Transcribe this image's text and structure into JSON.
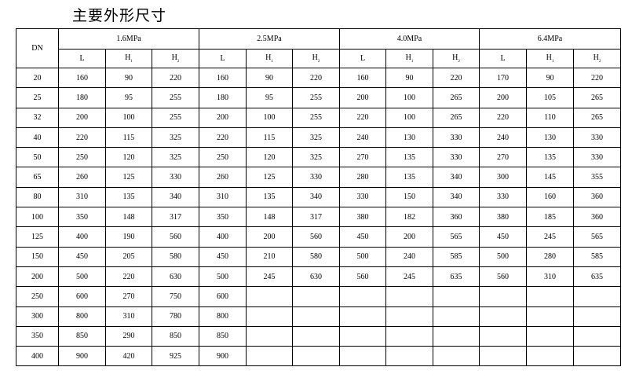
{
  "title": "主要外形尺寸",
  "table": {
    "dn_header": "DN",
    "pressure_groups": [
      "1.6MPa",
      "2.5MPa",
      "4.0MPa",
      "6.4MPa"
    ],
    "sub_headers": [
      {
        "base": "L",
        "sub": ""
      },
      {
        "base": "H",
        "sub": "1"
      },
      {
        "base": "H",
        "sub": "2"
      }
    ],
    "rows": [
      {
        "dn": "20",
        "values": [
          "160",
          "90",
          "220",
          "160",
          "90",
          "220",
          "160",
          "90",
          "220",
          "170",
          "90",
          "220"
        ]
      },
      {
        "dn": "25",
        "values": [
          "180",
          "95",
          "255",
          "180",
          "95",
          "255",
          "200",
          "100",
          "265",
          "200",
          "105",
          "265"
        ]
      },
      {
        "dn": "32",
        "values": [
          "200",
          "100",
          "255",
          "200",
          "100",
          "255",
          "220",
          "100",
          "265",
          "220",
          "110",
          "265"
        ]
      },
      {
        "dn": "40",
        "values": [
          "220",
          "115",
          "325",
          "220",
          "115",
          "325",
          "240",
          "130",
          "330",
          "240",
          "130",
          "330"
        ]
      },
      {
        "dn": "50",
        "values": [
          "250",
          "120",
          "325",
          "250",
          "120",
          "325",
          "270",
          "135",
          "330",
          "270",
          "135",
          "330"
        ]
      },
      {
        "dn": "65",
        "values": [
          "260",
          "125",
          "330",
          "260",
          "125",
          "330",
          "280",
          "135",
          "340",
          "300",
          "145",
          "355"
        ]
      },
      {
        "dn": "80",
        "values": [
          "310",
          "135",
          "340",
          "310",
          "135",
          "340",
          "330",
          "150",
          "340",
          "330",
          "160",
          "360"
        ]
      },
      {
        "dn": "100",
        "values": [
          "350",
          "148",
          "317",
          "350",
          "148",
          "317",
          "380",
          "182",
          "360",
          "380",
          "185",
          "360"
        ]
      },
      {
        "dn": "125",
        "values": [
          "400",
          "190",
          "560",
          "400",
          "200",
          "560",
          "450",
          "200",
          "565",
          "450",
          "245",
          "565"
        ]
      },
      {
        "dn": "150",
        "values": [
          "450",
          "205",
          "580",
          "450",
          "210",
          "580",
          "500",
          "240",
          "585",
          "500",
          "280",
          "585"
        ]
      },
      {
        "dn": "200",
        "values": [
          "500",
          "220",
          "630",
          "500",
          "245",
          "630",
          "560",
          "245",
          "635",
          "560",
          "310",
          "635"
        ]
      },
      {
        "dn": "250",
        "values": [
          "600",
          "270",
          "750",
          "600",
          "",
          "",
          "",
          "",
          "",
          "",
          "",
          ""
        ]
      },
      {
        "dn": "300",
        "values": [
          "800",
          "310",
          "780",
          "800",
          "",
          "",
          "",
          "",
          "",
          "",
          "",
          ""
        ]
      },
      {
        "dn": "350",
        "values": [
          "850",
          "290",
          "850",
          "850",
          "",
          "",
          "",
          "",
          "",
          "",
          "",
          ""
        ]
      },
      {
        "dn": "400",
        "values": [
          "900",
          "420",
          "925",
          "900",
          "",
          "",
          "",
          "",
          "",
          "",
          "",
          ""
        ]
      }
    ]
  }
}
